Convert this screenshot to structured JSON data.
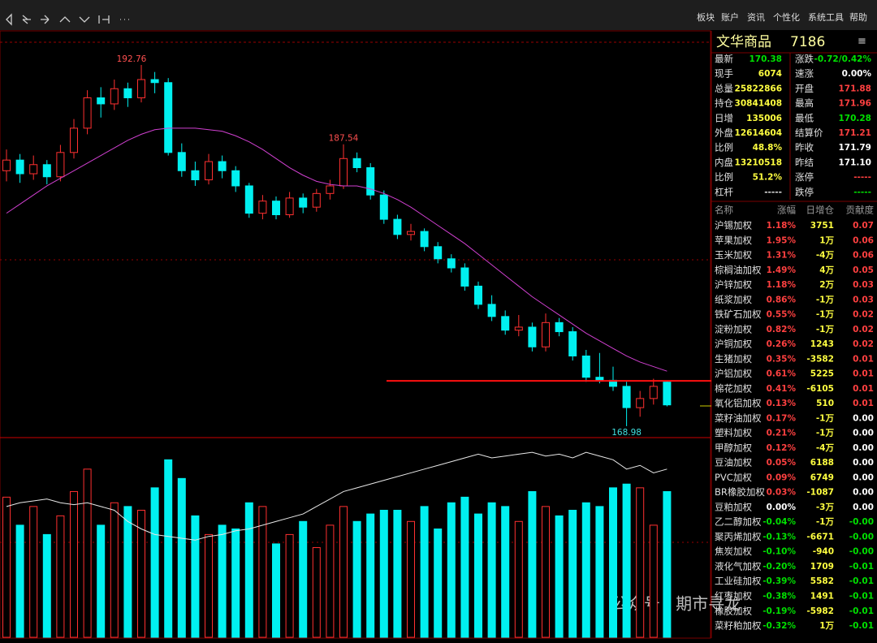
{
  "menu": [
    "板块",
    "账户",
    "资讯",
    "个性化",
    "系统工具",
    "帮助"
  ],
  "symbol": {
    "name": "文华商品",
    "code": "7186"
  },
  "quote_left": [
    {
      "label": "最新",
      "value": "170.38",
      "color": "#00e000"
    },
    {
      "label": "现手",
      "value": "6074",
      "color": "#ffff40"
    },
    {
      "label": "总量",
      "value": "25822866",
      "color": "#ffff40"
    },
    {
      "label": "持仓",
      "value": "30841408",
      "color": "#ffff40"
    },
    {
      "label": "日增",
      "value": "135006",
      "color": "#ffff40"
    },
    {
      "label": "外盘",
      "value": "12614604",
      "color": "#ffff40"
    },
    {
      "label": "比例",
      "value": "48.8%",
      "color": "#ffff40"
    },
    {
      "label": "内盘",
      "value": "13210518",
      "color": "#ffff40"
    },
    {
      "label": "比例",
      "value": "51.2%",
      "color": "#ffff40"
    },
    {
      "label": "杠杆",
      "value": "-----",
      "color": "#dddddd"
    }
  ],
  "quote_right": [
    {
      "label": "涨跌",
      "value": "-0.72/0.42%",
      "color": "#00e000"
    },
    {
      "label": "速涨",
      "value": "0.00%",
      "color": "#ffffff"
    },
    {
      "label": "开盘",
      "value": "171.88",
      "color": "#ff4040"
    },
    {
      "label": "最高",
      "value": "171.96",
      "color": "#ff4040"
    },
    {
      "label": "最低",
      "value": "170.28",
      "color": "#00e000"
    },
    {
      "label": "结算价",
      "value": "171.21",
      "color": "#ff4040"
    },
    {
      "label": "昨收",
      "value": "171.79",
      "color": "#ffffff"
    },
    {
      "label": "昨结",
      "value": "171.10",
      "color": "#ffffff"
    },
    {
      "label": "涨停",
      "value": "-----",
      "color": "#ff4040"
    },
    {
      "label": "跌停",
      "value": "-----",
      "color": "#00e000"
    }
  ],
  "list": {
    "columns": [
      "名称",
      "涨幅",
      "日增仓",
      "贡献度"
    ],
    "rows": [
      [
        "沪锡加权",
        "1.18%",
        "3751",
        "0.07"
      ],
      [
        "苹果加权",
        "1.95%",
        "1万",
        "0.06"
      ],
      [
        "玉米加权",
        "1.31%",
        "-4万",
        "0.06"
      ],
      [
        "棕榈油加权",
        "1.49%",
        "4万",
        "0.05"
      ],
      [
        "沪锌加权",
        "1.18%",
        "2万",
        "0.03"
      ],
      [
        "纸浆加权",
        "0.86%",
        "-1万",
        "0.03"
      ],
      [
        "铁矿石加权",
        "0.55%",
        "-1万",
        "0.02"
      ],
      [
        "淀粉加权",
        "0.82%",
        "-1万",
        "0.02"
      ],
      [
        "沪铜加权",
        "0.26%",
        "1243",
        "0.02"
      ],
      [
        "生猪加权",
        "0.35%",
        "-3582",
        "0.01"
      ],
      [
        "沪铝加权",
        "0.61%",
        "5225",
        "0.01"
      ],
      [
        "棉花加权",
        "0.41%",
        "-6105",
        "0.01"
      ],
      [
        "氧化铝加权",
        "0.13%",
        "510",
        "0.01"
      ],
      [
        "菜籽油加权",
        "0.17%",
        "-1万",
        "0.00"
      ],
      [
        "塑料加权",
        "0.21%",
        "-1万",
        "0.00"
      ],
      [
        "甲醇加权",
        "0.12%",
        "-4万",
        "0.00"
      ],
      [
        "豆油加权",
        "0.05%",
        "6188",
        "0.00"
      ],
      [
        "PVC加权",
        "0.09%",
        "6749",
        "0.00"
      ],
      [
        "BR橡胶加权",
        "0.03%",
        "-1087",
        "0.00"
      ],
      [
        "豆粕加权",
        "0.00%",
        "-3万",
        "0.00"
      ],
      [
        "乙二醇加权",
        "-0.04%",
        "-1万",
        "-0.00"
      ],
      [
        "聚丙烯加权",
        "-0.13%",
        "-6671",
        "-0.00"
      ],
      [
        "焦炭加权",
        "-0.10%",
        "-940",
        "-0.00"
      ],
      [
        "液化气加权",
        "-0.20%",
        "1709",
        "-0.01"
      ],
      [
        "工业硅加权",
        "-0.39%",
        "5582",
        "-0.01"
      ],
      [
        "红枣加权",
        "-0.38%",
        "1491",
        "-0.01"
      ],
      [
        "橡胶加权",
        "-0.19%",
        "-5982",
        "-0.01"
      ],
      [
        "菜籽粕加权",
        "-0.32%",
        "1万",
        "-0.01"
      ]
    ]
  },
  "chart": {
    "ylim": [
      168.28,
      194.26
    ],
    "vlim": [
      0,
      106
    ],
    "level": 171.96,
    "high_label": 192.76,
    "high_label2": 187.54,
    "low_label": 168.98,
    "candles": [
      [
        185.8,
        187.2,
        185.1,
        186.5
      ],
      [
        186.5,
        186.9,
        185.0,
        185.6
      ],
      [
        185.6,
        186.8,
        185.2,
        186.2
      ],
      [
        186.2,
        186.5,
        184.9,
        185.4
      ],
      [
        185.4,
        187.5,
        185.1,
        187.0
      ],
      [
        187.0,
        189.2,
        186.6,
        188.6
      ],
      [
        188.6,
        191.1,
        188.2,
        190.6
      ],
      [
        190.6,
        191.3,
        189.3,
        190.2
      ],
      [
        190.2,
        191.8,
        189.8,
        191.2
      ],
      [
        191.2,
        191.6,
        190.0,
        190.6
      ],
      [
        190.6,
        192.76,
        190.3,
        191.8
      ],
      [
        191.8,
        192.3,
        190.9,
        191.6
      ],
      [
        191.6,
        191.9,
        186.8,
        187.0
      ],
      [
        187.0,
        187.6,
        185.4,
        185.8
      ],
      [
        185.8,
        186.4,
        184.8,
        185.2
      ],
      [
        185.2,
        186.9,
        184.9,
        186.4
      ],
      [
        186.4,
        186.8,
        185.3,
        185.8
      ],
      [
        185.8,
        186.1,
        184.4,
        184.8
      ],
      [
        184.8,
        185.0,
        182.7,
        183.0
      ],
      [
        183.0,
        184.2,
        182.6,
        183.8
      ],
      [
        183.8,
        184.1,
        182.6,
        182.9
      ],
      [
        182.9,
        184.4,
        182.7,
        184.0
      ],
      [
        184.0,
        184.3,
        183.0,
        183.4
      ],
      [
        183.4,
        184.6,
        183.1,
        184.3
      ],
      [
        184.3,
        185.2,
        183.9,
        184.8
      ],
      [
        184.8,
        187.54,
        184.6,
        186.6
      ],
      [
        186.6,
        187.0,
        185.7,
        186.0
      ],
      [
        186.0,
        186.3,
        183.9,
        184.2
      ],
      [
        184.2,
        184.5,
        182.3,
        182.6
      ],
      [
        182.6,
        182.9,
        181.3,
        181.6
      ],
      [
        181.6,
        182.3,
        181.2,
        181.8
      ],
      [
        181.8,
        182.0,
        180.5,
        180.8
      ],
      [
        180.8,
        181.1,
        179.7,
        180.0
      ],
      [
        180.0,
        180.3,
        179.1,
        179.4
      ],
      [
        179.4,
        179.7,
        177.9,
        178.2
      ],
      [
        178.2,
        178.5,
        176.7,
        177.0
      ],
      [
        177.0,
        177.6,
        175.9,
        176.2
      ],
      [
        176.2,
        176.6,
        175.0,
        175.3
      ],
      [
        175.3,
        176.3,
        174.9,
        175.5
      ],
      [
        175.5,
        175.8,
        173.9,
        174.2
      ],
      [
        174.2,
        176.4,
        173.9,
        175.8
      ],
      [
        175.8,
        176.1,
        174.9,
        175.2
      ],
      [
        175.2,
        175.5,
        173.3,
        173.6
      ],
      [
        173.6,
        174.0,
        171.9,
        172.2
      ],
      [
        172.2,
        173.8,
        171.8,
        172.0
      ],
      [
        172.0,
        172.9,
        171.3,
        171.6
      ],
      [
        171.6,
        171.9,
        168.98,
        170.2
      ],
      [
        170.2,
        171.3,
        169.6,
        170.8
      ],
      [
        170.8,
        172.1,
        170.4,
        171.6
      ],
      [
        171.88,
        171.96,
        170.28,
        170.38
      ]
    ],
    "ma": [
      183.0,
      183.6,
      184.2,
      184.8,
      185.3,
      185.8,
      186.3,
      186.8,
      187.3,
      187.8,
      188.2,
      188.5,
      188.6,
      188.6,
      188.6,
      188.5,
      188.4,
      188.1,
      187.7,
      187.2,
      186.6,
      186.0,
      185.5,
      185.1,
      184.9,
      184.8,
      184.8,
      184.6,
      184.3,
      183.9,
      183.4,
      182.8,
      182.2,
      181.6,
      181.0,
      180.3,
      179.6,
      178.9,
      178.2,
      177.5,
      176.9,
      176.3,
      175.7,
      175.1,
      174.6,
      174.1,
      173.6,
      173.2,
      172.9,
      172.6
    ],
    "volume": [
      75,
      60,
      70,
      55,
      65,
      78,
      90,
      60,
      72,
      70,
      68,
      80,
      95,
      85,
      65,
      55,
      60,
      58,
      72,
      70,
      50,
      55,
      62,
      48,
      60,
      70,
      62,
      66,
      68,
      68,
      62,
      70,
      58,
      72,
      75,
      66,
      72,
      70,
      62,
      78,
      70,
      65,
      68,
      72,
      70,
      80,
      82,
      80,
      60,
      78
    ],
    "oi": [
      70,
      72,
      73,
      74,
      72,
      71,
      72,
      70,
      68,
      62,
      58,
      55,
      54,
      53,
      52,
      54,
      55,
      57,
      58,
      60,
      62,
      64,
      66,
      70,
      74,
      78,
      80,
      82,
      84,
      86,
      88,
      90,
      92,
      94,
      96,
      98,
      96,
      97,
      98,
      99,
      97,
      98,
      96,
      99,
      97,
      95,
      90,
      92,
      88,
      90
    ]
  },
  "watermark": "公众号 · 期市寻龙"
}
